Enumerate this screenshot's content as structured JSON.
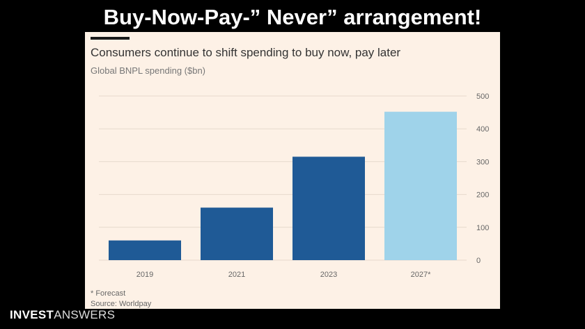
{
  "headline": "Buy-Now-Pay-” Never” arrangement!",
  "logo": {
    "strong": "INVEST",
    "light": "ANSWERS"
  },
  "chart_data": {
    "type": "bar",
    "title": "Consumers continue to shift spending to buy now, pay later",
    "subtitle": "Global BNPL spending ($bn)",
    "categories": [
      "2019",
      "2021",
      "2023",
      "2027*"
    ],
    "values": [
      60,
      160,
      315,
      452
    ],
    "forecast": [
      false,
      false,
      false,
      true
    ],
    "yticks": [
      0,
      100,
      200,
      300,
      400,
      500
    ],
    "ylim": [
      0,
      500
    ],
    "grid": true,
    "yaxis_position": "right",
    "colors": {
      "actual": "#1f5a96",
      "forecast": "#9fd3ea",
      "grid": "#e6d9cc"
    },
    "footnote": "* Forecast",
    "source": "Source: Worldpay"
  }
}
